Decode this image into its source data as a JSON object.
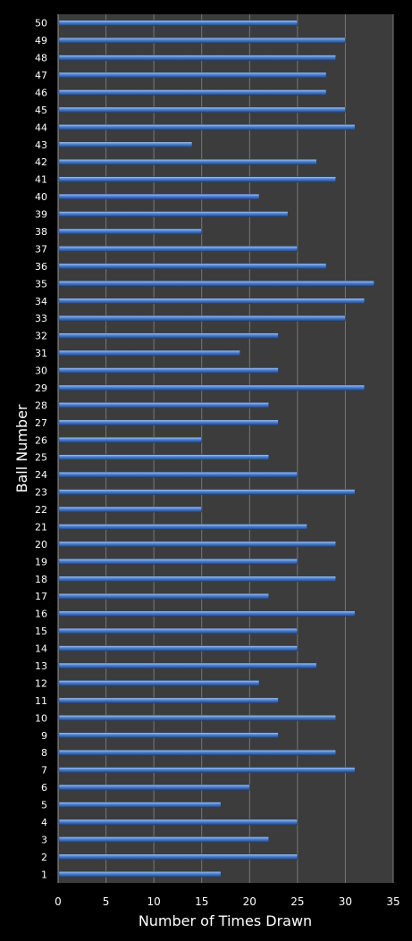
{
  "chart_data": {
    "type": "bar",
    "orientation": "horizontal",
    "xlabel": "Number of Times Drawn",
    "ylabel": "Ball Number",
    "xlim": [
      0,
      35
    ],
    "x_ticks": [
      0,
      5,
      10,
      15,
      20,
      25,
      30,
      35
    ],
    "grid": "vertical",
    "categories": [
      "1",
      "2",
      "3",
      "4",
      "5",
      "6",
      "7",
      "8",
      "9",
      "10",
      "11",
      "12",
      "13",
      "14",
      "15",
      "16",
      "17",
      "18",
      "19",
      "20",
      "21",
      "22",
      "23",
      "24",
      "25",
      "26",
      "27",
      "28",
      "29",
      "30",
      "31",
      "32",
      "33",
      "34",
      "35",
      "36",
      "37",
      "38",
      "39",
      "40",
      "41",
      "42",
      "43",
      "44",
      "45",
      "46",
      "47",
      "48",
      "49",
      "50"
    ],
    "values": [
      17,
      25,
      22,
      25,
      17,
      20,
      31,
      29,
      23,
      29,
      23,
      21,
      27,
      25,
      25,
      31,
      22,
      29,
      25,
      29,
      26,
      15,
      31,
      25,
      22,
      15,
      23,
      22,
      32,
      23,
      19,
      23,
      30,
      32,
      33,
      28,
      25,
      15,
      24,
      21,
      29,
      27,
      14,
      31,
      30,
      28,
      28,
      29,
      30,
      25
    ],
    "colors": {
      "background": "#000000",
      "plot_area": "#3c3c3c",
      "bar": "#4a7fd0",
      "bar_highlight": "#a9c6f2",
      "bar_shadow": "#23467e",
      "grid": "#777777",
      "text": "#ffffff"
    }
  }
}
